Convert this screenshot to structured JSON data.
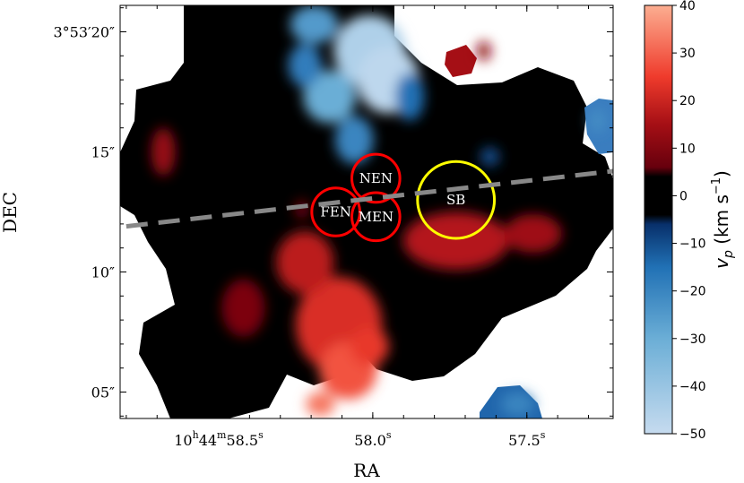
{
  "chart_data": {
    "type": "heatmap",
    "xlabel": "RA",
    "ylabel": "DEC",
    "x_ticks": [
      {
        "value": 58.5,
        "label": "10h44m58.5s"
      },
      {
        "value": 58.0,
        "label": "58.0s"
      },
      {
        "value": 57.5,
        "label": "57.5s"
      }
    ],
    "x_ticks_parts": {
      "58.5": {
        "h": "10",
        "hs": "h",
        "m": "44",
        "ms": "m",
        "s": "58.5",
        "ss": "s"
      },
      "58.0": {
        "s": "58.0",
        "ss": "s"
      },
      "57.5": {
        "s": "57.5",
        "ss": "s"
      }
    },
    "y_ticks": [
      {
        "value": 20,
        "label": "3°53′20″"
      },
      {
        "value": 15,
        "label": "15″"
      },
      {
        "value": 10,
        "label": "10″"
      },
      {
        "value": 5,
        "label": "05″"
      }
    ],
    "xlim": [
      58.82,
      57.22
    ],
    "ylim": [
      3.9,
      21.1
    ],
    "colorbar": {
      "label": "v_p (km s^-1)",
      "label_parts": {
        "main": "v",
        "sub": "p",
        "unit_open": " (km s",
        "sup": "−1",
        "unit_close": ")"
      },
      "range": [
        -50,
        40
      ],
      "ticks": [
        40,
        30,
        20,
        10,
        0,
        -10,
        -20,
        -30,
        -40,
        -50
      ],
      "stops": [
        {
          "value": -50,
          "color": "#c6dbef"
        },
        {
          "value": -30,
          "color": "#6baed6"
        },
        {
          "value": -15,
          "color": "#2171b5"
        },
        {
          "value": -6,
          "color": "#08306b"
        },
        {
          "value": -4,
          "color": "#000000"
        },
        {
          "value": 4,
          "color": "#000000"
        },
        {
          "value": 6,
          "color": "#67000d"
        },
        {
          "value": 15,
          "color": "#a50f15"
        },
        {
          "value": 25,
          "color": "#ef3b2c"
        },
        {
          "value": 40,
          "color": "#fcae91"
        }
      ]
    },
    "regions": [
      {
        "label": "NEN",
        "ra": 57.99,
        "dec": 13.9,
        "radius_arcsec": 1.0,
        "color": "#ff0000"
      },
      {
        "label": "FEN",
        "ra": 58.12,
        "dec": 12.5,
        "radius_arcsec": 1.0,
        "color": "#ff0000"
      },
      {
        "label": "MEN",
        "ra": 57.99,
        "dec": 12.3,
        "radius_arcsec": 1.0,
        "color": "#ff0000"
      },
      {
        "label": "SB",
        "ra": 57.73,
        "dec": 13.0,
        "radius_arcsec": 1.6,
        "color": "#ffff00"
      }
    ],
    "dashed_line": {
      "color": "#888888",
      "from": {
        "ra": 58.8,
        "dec": 11.9
      },
      "to": {
        "ra": 57.22,
        "dec": 14.2
      }
    },
    "blobs": [
      {
        "ra": 58.01,
        "dec": 19.2,
        "rx": 1.5,
        "ry": 1.5,
        "v": -45
      },
      {
        "ra": 57.95,
        "dec": 18.0,
        "rx": 1.3,
        "ry": 1.4,
        "v": -48
      },
      {
        "ra": 58.14,
        "dec": 17.3,
        "rx": 1.1,
        "ry": 1.1,
        "v": -30
      },
      {
        "ra": 58.19,
        "dec": 20.3,
        "rx": 1.0,
        "ry": 0.8,
        "v": -25
      },
      {
        "ra": 58.06,
        "dec": 15.5,
        "rx": 0.8,
        "ry": 1.0,
        "v": -20
      },
      {
        "ra": 57.88,
        "dec": 17.3,
        "rx": 0.6,
        "ry": 1.0,
        "v": -15
      },
      {
        "ra": 58.22,
        "dec": 18.6,
        "rx": 0.7,
        "ry": 0.9,
        "v": -18
      },
      {
        "ra": 57.27,
        "dec": 16.3,
        "rx": 0.35,
        "ry": 0.5,
        "v": -22
      },
      {
        "ra": 57.53,
        "dec": 4.5,
        "rx": 0.7,
        "ry": 0.5,
        "v": -20
      },
      {
        "ra": 57.62,
        "dec": 14.8,
        "rx": 0.4,
        "ry": 0.4,
        "v": -10
      },
      {
        "ra": 58.11,
        "dec": 7.8,
        "rx": 1.8,
        "ry": 2.0,
        "v": 22
      },
      {
        "ra": 58.08,
        "dec": 5.9,
        "rx": 1.2,
        "ry": 1.2,
        "v": 28
      },
      {
        "ra": 58.01,
        "dec": 6.9,
        "rx": 0.8,
        "ry": 0.8,
        "v": 24
      },
      {
        "ra": 58.22,
        "dec": 10.4,
        "rx": 1.2,
        "ry": 1.3,
        "v": 18
      },
      {
        "ra": 57.73,
        "dec": 11.3,
        "rx": 2.2,
        "ry": 1.2,
        "v": 17
      },
      {
        "ra": 57.48,
        "dec": 11.6,
        "rx": 1.2,
        "ry": 0.8,
        "v": 14
      },
      {
        "ra": 58.17,
        "dec": 4.5,
        "rx": 0.6,
        "ry": 0.5,
        "v": 33
      },
      {
        "ra": 58.42,
        "dec": 8.5,
        "rx": 0.9,
        "ry": 1.2,
        "v": 9
      },
      {
        "ra": 58.68,
        "dec": 15.0,
        "rx": 0.5,
        "ry": 1.0,
        "v": 13
      },
      {
        "ra": 57.64,
        "dec": 19.2,
        "rx": 0.3,
        "ry": 0.4,
        "v": 12
      },
      {
        "ra": 58.23,
        "dec": 12.6,
        "rx": 0.3,
        "ry": 0.4,
        "v": 8
      }
    ]
  }
}
